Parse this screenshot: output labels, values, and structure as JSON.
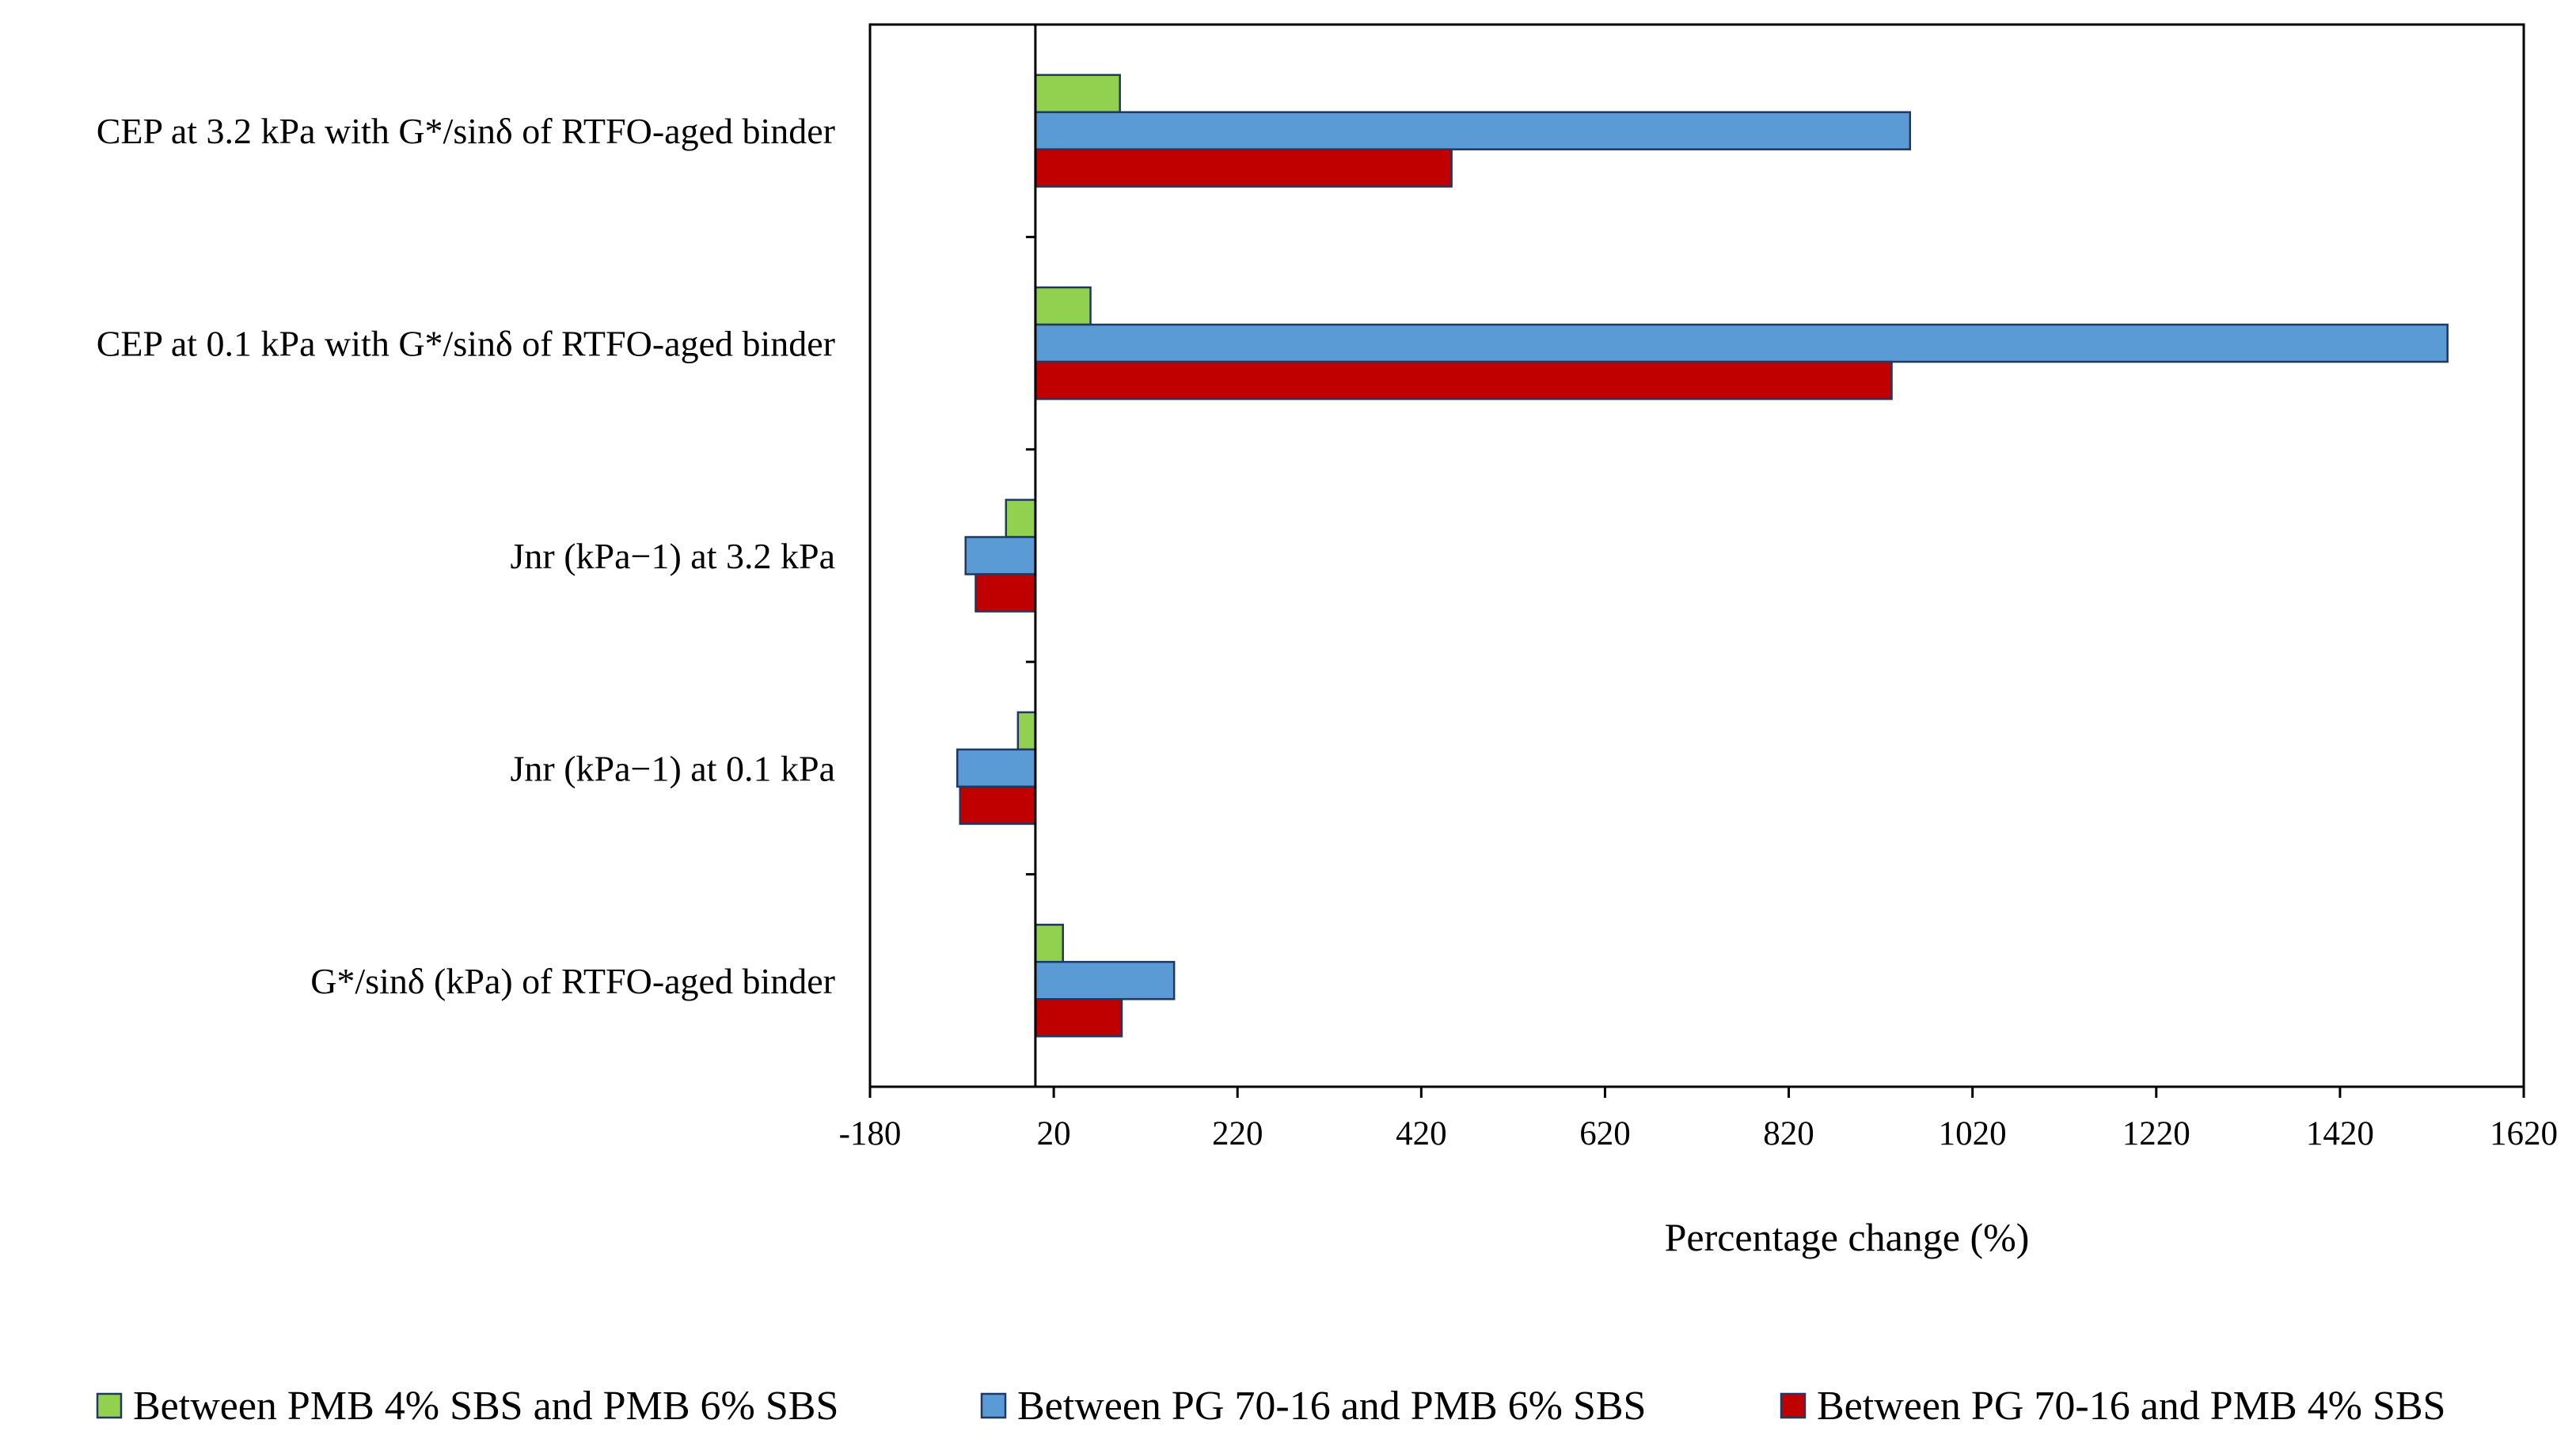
{
  "chart_data": {
    "type": "bar",
    "orientation": "horizontal",
    "title": "",
    "xlabel": "Percentage change (%)",
    "ylabel": "",
    "xlim": [
      -180,
      1620
    ],
    "xticks": [
      -180,
      20,
      220,
      420,
      620,
      820,
      1020,
      1220,
      1420,
      1620
    ],
    "xtick_labels": [
      "-180",
      "20",
      "220",
      "420",
      "620",
      "820",
      "1020",
      "1220",
      "1420",
      "1620"
    ],
    "grid": false,
    "legend_position": "bottom",
    "categories": [
      "CEP at 3.2 kPa with G*/sinδ of RTFO-aged  binder",
      "CEP at 0.1 kPa with G*/sinδ of RTFO-aged  binder",
      "Jnr (kPa−1) at 3.2 kPa",
      "Jnr (kPa−1) at 0.1 kPa",
      "G*/sinδ (kPa) of RTFO-aged  binder"
    ],
    "series": [
      {
        "name": "Between PMB 4% SBS and PMB 6% SBS",
        "color": "#92D050",
        "values": [
          92,
          60,
          -32,
          -19,
          30
        ]
      },
      {
        "name": "Between PG 70-16 and PMB 6% SBS",
        "color": "#5B9BD5",
        "values": [
          952,
          1537,
          -76,
          -85,
          151
        ]
      },
      {
        "name": "Between PG 70-16 and PMB 4% SBS",
        "color": "#C00000",
        "values": [
          453,
          932,
          -65,
          -82,
          94
        ]
      }
    ]
  }
}
